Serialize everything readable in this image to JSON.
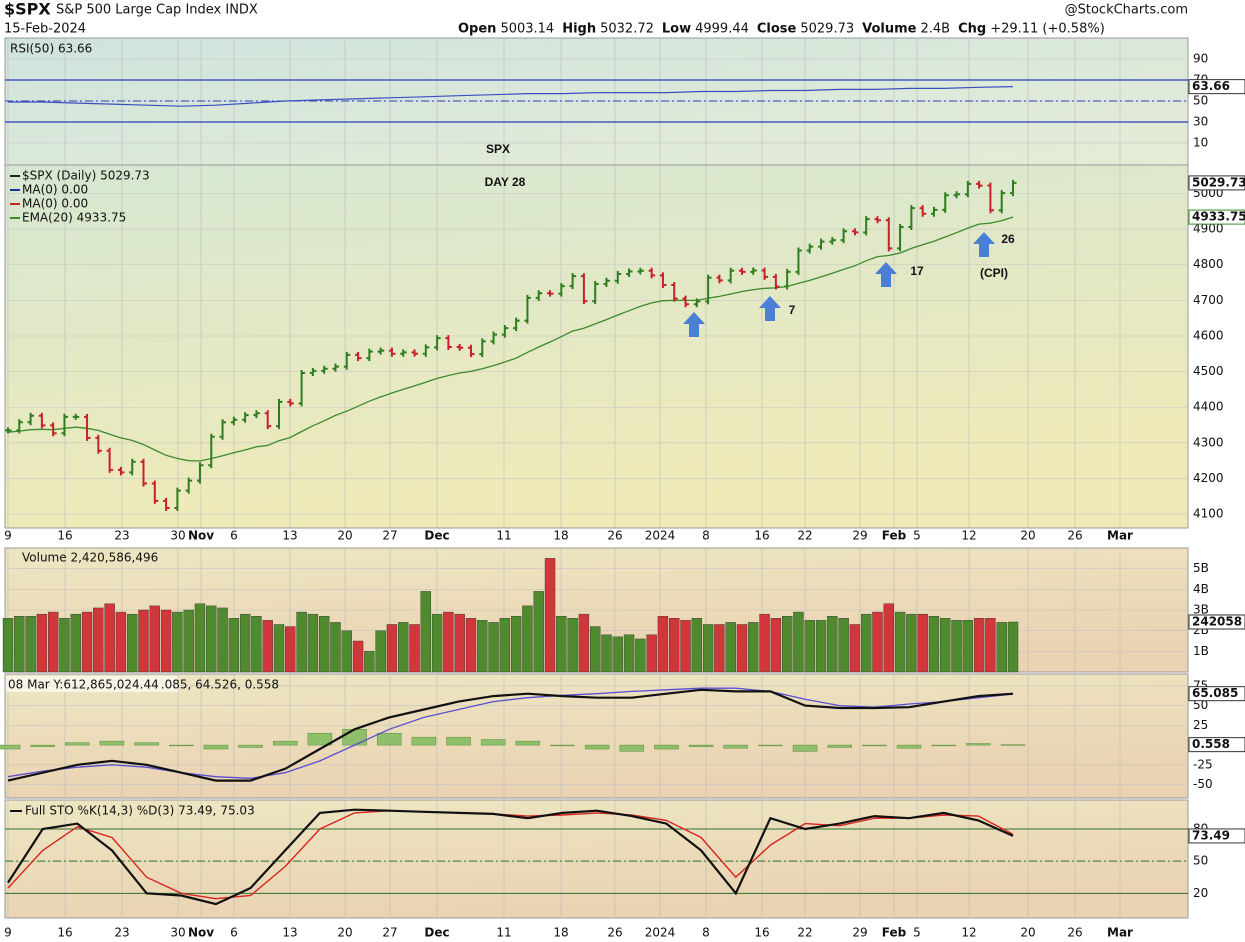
{
  "header": {
    "symbol": "$SPX",
    "name": "S&P 500 Large Cap Index INDX",
    "date": "15-Feb-2024",
    "brand": "@StockCharts.com",
    "quote": [
      {
        "label": "Open",
        "value": "5003.14"
      },
      {
        "label": "High",
        "value": "5032.72"
      },
      {
        "label": "Low",
        "value": "4999.44"
      },
      {
        "label": "Close",
        "value": "5029.73"
      },
      {
        "label": "Volume",
        "value": "2.4B"
      },
      {
        "label": "Chg",
        "value": "+29.11 (+0.58%)"
      }
    ]
  },
  "x_labels": [
    "9",
    "16",
    "23",
    "30",
    "Nov",
    "6",
    "13",
    "20",
    "27",
    "Dec",
    "11",
    "18",
    "26",
    "2024",
    "8",
    "16",
    "22",
    "29",
    "Feb",
    "5",
    "12",
    "20",
    "26",
    "Mar"
  ],
  "chart_data": [
    {
      "type": "line",
      "title": "RSI(50) 63.66",
      "ylim": [
        -11,
        110
      ],
      "yticks": [
        10,
        30,
        50,
        70,
        90
      ],
      "bands": [
        70,
        30
      ],
      "midline": 50,
      "last_label": "63.66",
      "series": [
        {
          "name": "RSI(50)",
          "color": "#3a4fc0",
          "values": [
            49,
            49,
            48,
            47,
            46,
            45,
            46,
            48,
            50,
            51,
            52,
            53,
            54,
            55,
            56,
            57,
            57,
            58,
            58,
            58,
            59,
            59,
            60,
            60,
            61,
            61,
            62,
            62,
            63,
            63.66
          ]
        }
      ]
    },
    {
      "type": "price",
      "title": "SPX",
      "subtitle": "DAY 28",
      "ylim": [
        4061,
        5080
      ],
      "yticks": [
        4100,
        4200,
        4300,
        4400,
        4500,
        4600,
        4700,
        4800,
        4900,
        5000
      ],
      "grid": true,
      "legend": [
        "$SPX (Daily) 5029.73",
        "MA(0) 0.00",
        "MA(0) 0.00",
        "EMA(20) 4933.75"
      ],
      "legend_colors": [
        "#222222",
        "#1a2fa0",
        "#c8202a",
        "#3d8a2e"
      ],
      "annotations": [
        "7",
        "17",
        "26",
        "(CPI)"
      ],
      "last_labels": [
        "5029.73",
        "4933.75"
      ],
      "up_color": "#2d7d1e",
      "down_color": "#c8202a",
      "series": [
        {
          "name": "$SPX",
          "color": "#2d7d1e",
          "values": [
            4335,
            4358,
            4376,
            4349,
            4327,
            4373,
            4373,
            4314,
            4278,
            4224,
            4217,
            4247,
            4186,
            4137,
            4117,
            4166,
            4194,
            4237,
            4317,
            4358,
            4365,
            4378,
            4383,
            4347,
            4415,
            4411,
            4496,
            4502,
            4508,
            4514,
            4547,
            4538,
            4556,
            4559,
            4550,
            4554,
            4550,
            4568,
            4594,
            4569,
            4567,
            4549,
            4585,
            4604,
            4622,
            4643,
            4707,
            4720,
            4719,
            4740,
            4768,
            4698,
            4746,
            4755,
            4774,
            4781,
            4783,
            4770,
            4743,
            4705,
            4689,
            4697,
            4764,
            4756,
            4783,
            4780,
            4784,
            4766,
            4739,
            4780,
            4840,
            4851,
            4865,
            4869,
            4894,
            4891,
            4928,
            4925,
            4846,
            4906,
            4959,
            4943,
            4954,
            4995,
            4998,
            5027,
            5022,
            4953,
            5001,
            5029.73
          ]
        },
        {
          "name": "EMA(20)",
          "color": "#3d8a2e",
          "values": [
            4330,
            4333,
            4337,
            4338,
            4337,
            4341,
            4344,
            4341,
            4335,
            4324,
            4314,
            4307,
            4295,
            4280,
            4265,
            4256,
            4250,
            4249,
            4256,
            4264,
            4272,
            4280,
            4289,
            4293,
            4306,
            4315,
            4332,
            4348,
            4362,
            4377,
            4389,
            4403,
            4417,
            4429,
            4440,
            4450,
            4460,
            4470,
            4481,
            4489,
            4496,
            4501,
            4508,
            4517,
            4527,
            4538,
            4554,
            4569,
            4583,
            4598,
            4614,
            4622,
            4634,
            4646,
            4659,
            4671,
            4683,
            4693,
            4699,
            4700,
            4700,
            4700,
            4706,
            4711,
            4718,
            4725,
            4730,
            4734,
            4735,
            4739,
            4748,
            4756,
            4766,
            4776,
            4787,
            4797,
            4811,
            4823,
            4826,
            4833,
            4846,
            4856,
            4866,
            4878,
            4890,
            4903,
            4914,
            4917,
            4924,
            4933.75
          ]
        }
      ]
    },
    {
      "type": "bar",
      "title": "Volume 2,420,586,496",
      "ylim": [
        0,
        6
      ],
      "yticks": [
        {
          "value": 1,
          "label": "1B"
        },
        {
          "value": 2,
          "label": "2B"
        },
        {
          "value": 3,
          "label": "3B"
        },
        {
          "value": 4,
          "label": "4B"
        },
        {
          "value": 5,
          "label": "5B"
        }
      ],
      "last_label": "242058",
      "values": [
        2.6,
        2.7,
        2.7,
        2.8,
        2.9,
        2.6,
        2.8,
        2.9,
        3.1,
        3.3,
        2.9,
        2.8,
        3.0,
        3.2,
        3.0,
        2.9,
        3.0,
        3.3,
        3.2,
        3.1,
        2.6,
        2.8,
        2.7,
        2.5,
        2.3,
        2.2,
        2.9,
        2.8,
        2.7,
        2.4,
        2.0,
        1.5,
        1.0,
        2.0,
        2.3,
        2.4,
        2.3,
        3.9,
        2.8,
        2.9,
        2.8,
        2.6,
        2.5,
        2.4,
        2.6,
        2.7,
        3.2,
        3.9,
        5.5,
        2.7,
        2.6,
        2.8,
        2.2,
        1.8,
        1.7,
        1.8,
        1.6,
        1.8,
        2.7,
        2.6,
        2.5,
        2.6,
        2.3,
        2.3,
        2.4,
        2.3,
        2.4,
        2.8,
        2.6,
        2.7,
        2.9,
        2.5,
        2.5,
        2.7,
        2.6,
        2.3,
        2.8,
        2.9,
        3.3,
        2.9,
        2.8,
        2.8,
        2.7,
        2.6,
        2.5,
        2.5,
        2.6,
        2.6,
        2.4,
        2.42
      ]
    },
    {
      "type": "macd",
      "title": "08 Mar Y:612,865,024.44",
      "subtitle": ".085, 64.526, 0.558",
      "ylim": [
        -67,
        90
      ],
      "yticks": [
        -50,
        -25,
        25,
        50,
        75
      ],
      "last_labels": [
        "65.085",
        "0.558"
      ],
      "series": [
        {
          "name": "MACD",
          "color": "#111111",
          "values": [
            -45,
            -35,
            -25,
            -20,
            -25,
            -35,
            -45,
            -45,
            -30,
            -5,
            20,
            35,
            45,
            55,
            62,
            65,
            62,
            60,
            60,
            65,
            70,
            68,
            68,
            50,
            47,
            47,
            48,
            55,
            62,
            65.085
          ]
        },
        {
          "name": "Signal",
          "color": "#5a4fd0",
          "values": [
            -40,
            -33,
            -28,
            -25,
            -28,
            -35,
            -40,
            -42,
            -35,
            -20,
            0,
            20,
            35,
            45,
            55,
            60,
            63,
            65,
            68,
            70,
            72,
            72,
            68,
            58,
            50,
            48,
            52,
            55,
            60,
            64.526
          ]
        },
        {
          "name": "Histogram",
          "color": "#8fbf6a",
          "values": [
            -5,
            -2,
            3,
            5,
            3,
            0,
            -5,
            -3,
            5,
            15,
            20,
            15,
            10,
            10,
            7,
            5,
            -1,
            -5,
            -8,
            -5,
            -2,
            -4,
            0,
            -8,
            -3,
            -1,
            -4,
            0,
            2,
            0.558
          ]
        }
      ]
    },
    {
      "type": "sto",
      "title": "Full STO %K(14,3) %D(3) 73.49,",
      "subtitle": "75.03",
      "ylim": [
        -3,
        107
      ],
      "yticks": [
        20,
        50,
        80
      ],
      "last_label": "73.49",
      "series": [
        {
          "name": "%K",
          "color": "#111111",
          "values": [
            30,
            80,
            85,
            60,
            20,
            18,
            10,
            25,
            60,
            95,
            98,
            97,
            96,
            95,
            94,
            90,
            95,
            97,
            92,
            85,
            60,
            20,
            90,
            80,
            85,
            92,
            90,
            95,
            88,
            73.49
          ]
        },
        {
          "name": "%D",
          "color": "#d8261e",
          "values": [
            25,
            60,
            82,
            72,
            35,
            20,
            15,
            18,
            45,
            80,
            95,
            97,
            96,
            95,
            94,
            92,
            93,
            95,
            93,
            88,
            72,
            35,
            65,
            85,
            83,
            90,
            90,
            93,
            92,
            75.03
          ]
        }
      ]
    }
  ]
}
